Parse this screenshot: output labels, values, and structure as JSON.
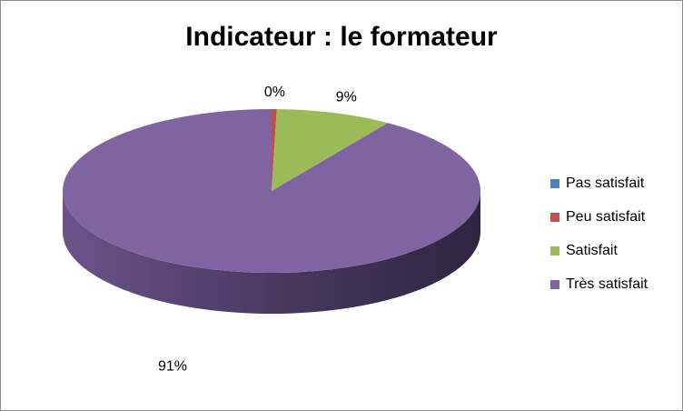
{
  "chart_data": {
    "type": "pie3d",
    "title": "Indicateur : le formateur",
    "categories": [
      "Pas satisfait",
      "Peu satisfait",
      "Satisfait",
      "Très satisfait"
    ],
    "values": [
      0,
      0.4,
      9,
      90.6
    ],
    "value_labels": [
      null,
      "0%",
      "9%",
      "91%"
    ],
    "colors": [
      "#4f81bd",
      "#c0504d",
      "#9bbb59",
      "#8064a2"
    ],
    "legend": "right"
  }
}
